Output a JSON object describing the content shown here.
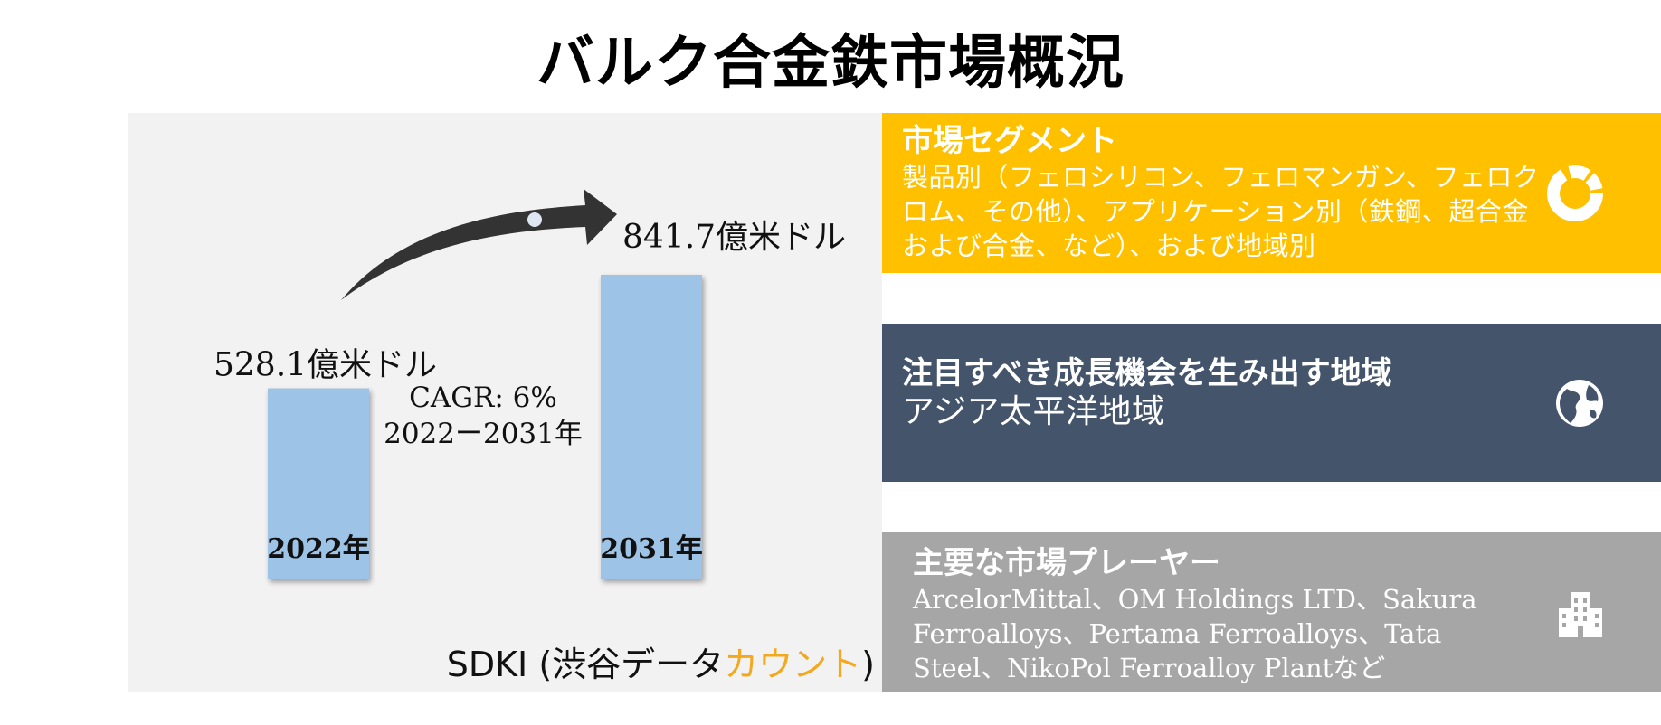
{
  "title": "バルク合金鉄市場概況",
  "chart_data": {
    "type": "bar",
    "categories": [
      "2022年",
      "2031年"
    ],
    "values": [
      528.1,
      841.7
    ],
    "value_labels": [
      "528.1億米ドル",
      "841.7億米ドル"
    ],
    "unit": "億米ドル",
    "cagr_line1": "CAGR: 6%",
    "cagr_line2": "2022ー2031年",
    "bar_color": "#9dc3e6",
    "arrow_color": "#333333"
  },
  "source": {
    "prefix": "SDKI (渋谷データ",
    "accent": "カウント",
    "suffix": ")"
  },
  "cards": [
    {
      "heading": "市場セグメント",
      "body": "製品別（フェロシリコン、フェロマンガン、フェロクロム、その他）、アプリケーション別（鉄鋼、超合金および合金、など）、および地域別",
      "icon": "donut-chart-icon",
      "color": "#ffc000"
    },
    {
      "heading": "注目すべき成長機会を生み出す地域",
      "body": "アジア太平洋地域",
      "icon": "globe-icon",
      "color": "#44546a"
    },
    {
      "heading": "主要な市場プレーヤー",
      "body": "ArcelorMittal、OM Holdings LTD、Sakura Ferroalloys、Pertama Ferroalloys、Tata Steel、NikoPol Ferroalloy Plantなど",
      "icon": "building-icon",
      "color": "#a6a6a6"
    }
  ]
}
